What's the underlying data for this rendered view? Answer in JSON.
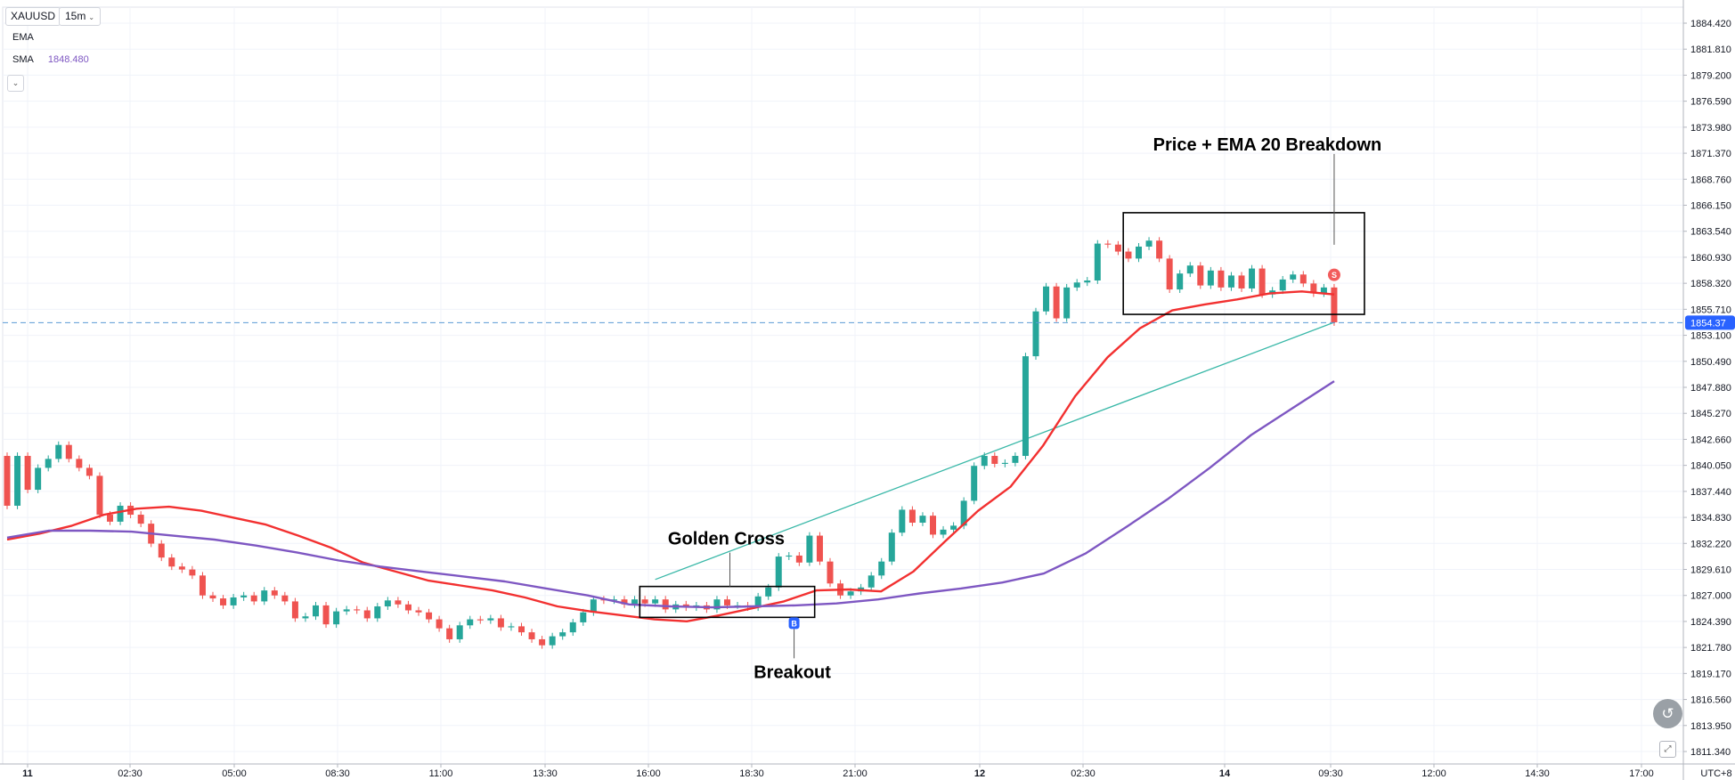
{
  "toolbar": {
    "symbol": "XAUUSD",
    "timeframe": "15m"
  },
  "legend": {
    "ema_label": "EMA",
    "sma_label": "SMA",
    "sma_value": "1848.480"
  },
  "colors": {
    "up": "#26a69a",
    "down": "#ef5350",
    "ema": "#f23030",
    "sma": "#7e57c2",
    "trendline": "#3ab8a8",
    "grid": "#f0f3fa",
    "price_line": "#5b9bd5",
    "price_tag": "#2962ff"
  },
  "icons": {
    "collapse": "chevron-down-icon",
    "float_button": "scroll-to-realtime-icon",
    "fit_button": "auto-scale-icon"
  },
  "chart_data": {
    "type": "candlestick",
    "symbol": "XAUUSD",
    "interval": "15m",
    "ylim": [
      1811.34,
      1884.42
    ],
    "y_ticks": [
      "1884.420",
      "1881.810",
      "1879.200",
      "1876.590",
      "1873.980",
      "1871.370",
      "1868.760",
      "1866.150",
      "1863.540",
      "1860.930",
      "1858.320",
      "1855.710",
      "1853.100",
      "1850.490",
      "1847.880",
      "1845.270",
      "1842.660",
      "1840.050",
      "1837.440",
      "1834.830",
      "1832.220",
      "1829.610",
      "1827.000",
      "1824.390",
      "1821.780",
      "1819.170",
      "1816.560",
      "1813.950",
      "1811.340"
    ],
    "x_ticks": [
      "11",
      "02:30",
      "05:00",
      "08:30",
      "11:00",
      "13:30",
      "16:00",
      "18:30",
      "21:00",
      "12",
      "02:30",
      "14",
      "09:30",
      "12:00",
      "14:30",
      "17:00"
    ],
    "timezone": "UTC+8",
    "current_price": "1854.37",
    "grid": true,
    "candles": [
      [
        1841.0,
        1836.0
      ],
      [
        1836.0,
        1841.0
      ],
      [
        1841.0,
        1837.6
      ],
      [
        1837.6,
        1839.8
      ],
      [
        1839.8,
        1840.7
      ],
      [
        1840.7,
        1842.1
      ],
      [
        1842.1,
        1840.7
      ],
      [
        1840.7,
        1839.8
      ],
      [
        1839.8,
        1839.0
      ],
      [
        1839.0,
        1835.1
      ],
      [
        1835.1,
        1834.4
      ],
      [
        1834.4,
        1836.0
      ],
      [
        1836.0,
        1835.1
      ],
      [
        1835.1,
        1834.2
      ],
      [
        1834.2,
        1832.2
      ],
      [
        1832.2,
        1830.8
      ],
      [
        1830.8,
        1829.9
      ],
      [
        1829.9,
        1829.6
      ],
      [
        1829.6,
        1829.0
      ],
      [
        1829.0,
        1827.0
      ],
      [
        1827.0,
        1826.7
      ],
      [
        1826.7,
        1826.0
      ],
      [
        1826.0,
        1826.8
      ],
      [
        1826.8,
        1827.0
      ],
      [
        1827.0,
        1826.4
      ],
      [
        1826.4,
        1827.5
      ],
      [
        1827.5,
        1827.0
      ],
      [
        1827.0,
        1826.4
      ],
      [
        1826.4,
        1824.7
      ],
      [
        1824.7,
        1824.9
      ],
      [
        1824.9,
        1826.0
      ],
      [
        1826.0,
        1824.1
      ],
      [
        1824.1,
        1825.4
      ],
      [
        1825.4,
        1825.6
      ],
      [
        1825.6,
        1825.5
      ],
      [
        1825.5,
        1824.7
      ],
      [
        1824.7,
        1825.9
      ],
      [
        1825.9,
        1826.5
      ],
      [
        1826.5,
        1826.1
      ],
      [
        1826.1,
        1825.5
      ],
      [
        1825.5,
        1825.3
      ],
      [
        1825.3,
        1824.6
      ],
      [
        1824.6,
        1823.7
      ],
      [
        1823.7,
        1822.6
      ],
      [
        1822.6,
        1824.0
      ],
      [
        1824.0,
        1824.6
      ],
      [
        1824.6,
        1824.5
      ],
      [
        1824.5,
        1824.7
      ],
      [
        1824.7,
        1823.8
      ],
      [
        1823.8,
        1823.9
      ],
      [
        1823.9,
        1823.3
      ],
      [
        1823.3,
        1822.6
      ],
      [
        1822.6,
        1822.0
      ],
      [
        1822.0,
        1822.9
      ],
      [
        1822.9,
        1823.3
      ],
      [
        1823.3,
        1824.3
      ],
      [
        1824.3,
        1825.3
      ],
      [
        1825.3,
        1826.6
      ],
      [
        1826.6,
        1826.5
      ],
      [
        1826.5,
        1826.6
      ],
      [
        1826.6,
        1826.1
      ],
      [
        1826.1,
        1826.6
      ],
      [
        1826.6,
        1826.2
      ],
      [
        1826.2,
        1826.6
      ],
      [
        1826.6,
        1825.6
      ],
      [
        1825.6,
        1826.1
      ],
      [
        1826.1,
        1825.8
      ],
      [
        1825.8,
        1826.0
      ],
      [
        1826.0,
        1825.6
      ],
      [
        1825.6,
        1826.6
      ],
      [
        1826.6,
        1826.0
      ],
      [
        1826.0,
        1826.0
      ],
      [
        1826.0,
        1825.8
      ],
      [
        1825.8,
        1826.9
      ],
      [
        1826.9,
        1827.8
      ],
      [
        1827.8,
        1830.9
      ],
      [
        1830.9,
        1831.0
      ],
      [
        1831.0,
        1830.3
      ],
      [
        1830.3,
        1833.0
      ],
      [
        1833.0,
        1830.4
      ],
      [
        1830.4,
        1828.2
      ],
      [
        1828.2,
        1827.0
      ],
      [
        1827.0,
        1827.4
      ],
      [
        1827.4,
        1827.8
      ],
      [
        1827.8,
        1829.0
      ],
      [
        1829.0,
        1830.4
      ],
      [
        1830.4,
        1833.3
      ],
      [
        1833.3,
        1835.6
      ],
      [
        1835.6,
        1834.3
      ],
      [
        1834.3,
        1835.0
      ],
      [
        1835.0,
        1833.1
      ],
      [
        1833.1,
        1833.6
      ],
      [
        1833.6,
        1834.0
      ],
      [
        1834.0,
        1836.5
      ],
      [
        1836.5,
        1840.0
      ],
      [
        1840.0,
        1841.0
      ],
      [
        1841.0,
        1840.2
      ],
      [
        1840.2,
        1840.3
      ],
      [
        1840.3,
        1841.0
      ],
      [
        1841.0,
        1851.0
      ],
      [
        1851.0,
        1855.5
      ],
      [
        1855.5,
        1858.0
      ],
      [
        1858.0,
        1854.8
      ],
      [
        1854.8,
        1857.9
      ],
      [
        1857.9,
        1858.4
      ],
      [
        1858.4,
        1858.6
      ],
      [
        1858.6,
        1862.3
      ],
      [
        1862.3,
        1862.2
      ],
      [
        1862.2,
        1861.5
      ],
      [
        1861.5,
        1860.8
      ],
      [
        1860.8,
        1862.0
      ],
      [
        1862.0,
        1862.6
      ],
      [
        1862.6,
        1860.8
      ],
      [
        1860.8,
        1857.7
      ],
      [
        1857.7,
        1859.3
      ],
      [
        1859.3,
        1860.1
      ],
      [
        1860.1,
        1858.1
      ],
      [
        1858.1,
        1859.6
      ],
      [
        1859.6,
        1857.9
      ],
      [
        1857.9,
        1859.1
      ],
      [
        1859.1,
        1857.8
      ],
      [
        1857.8,
        1859.8
      ],
      [
        1859.8,
        1857.2
      ],
      [
        1857.2,
        1857.6
      ],
      [
        1857.6,
        1858.7
      ],
      [
        1858.7,
        1859.2
      ],
      [
        1859.2,
        1858.3
      ],
      [
        1858.3,
        1857.3
      ],
      [
        1857.3,
        1857.9
      ],
      [
        1857.9,
        1854.4
      ]
    ],
    "series": [
      {
        "name": "EMA",
        "values": [
          1832.6,
          1833.2,
          1834.0,
          1835.1,
          1835.7,
          1835.9,
          1835.5,
          1834.8,
          1834.1,
          1833.0,
          1831.8,
          1830.3,
          1829.4,
          1828.5,
          1828.0,
          1827.5,
          1826.8,
          1825.9,
          1825.4,
          1825.0,
          1824.6,
          1824.4,
          1825.0,
          1825.7,
          1826.4,
          1827.5,
          1827.6,
          1827.4,
          1829.4,
          1832.5,
          1835.5,
          1837.9,
          1842.0,
          1847.0,
          1850.9,
          1853.8,
          1855.6,
          1856.2,
          1856.7,
          1857.3,
          1857.5,
          1857.2
        ]
      },
      {
        "name": "SMA",
        "values": [
          1832.8,
          1833.5,
          1833.5,
          1833.4,
          1833.0,
          1832.6,
          1832.0,
          1831.3,
          1830.5,
          1829.9,
          1829.4,
          1828.9,
          1828.4,
          1827.7,
          1827.0,
          1826.1,
          1825.9,
          1825.8,
          1825.9,
          1826.0,
          1826.2,
          1826.6,
          1827.2,
          1827.7,
          1828.3,
          1829.2,
          1831.2,
          1833.9,
          1836.7,
          1839.8,
          1843.1,
          1845.8,
          1848.5
        ]
      }
    ],
    "trendline": {
      "from": 1828.6,
      "to": 1854.4
    },
    "annotations": [
      {
        "text": "Golden Cross",
        "box": [
          1824.8,
          1827.9
        ]
      },
      {
        "text": "Breakout"
      },
      {
        "text": "Price + EMA 20 Breakdown",
        "box": [
          1855.2,
          1865.4
        ]
      }
    ],
    "markers": [
      {
        "text": "B"
      },
      {
        "text": "S"
      }
    ]
  }
}
